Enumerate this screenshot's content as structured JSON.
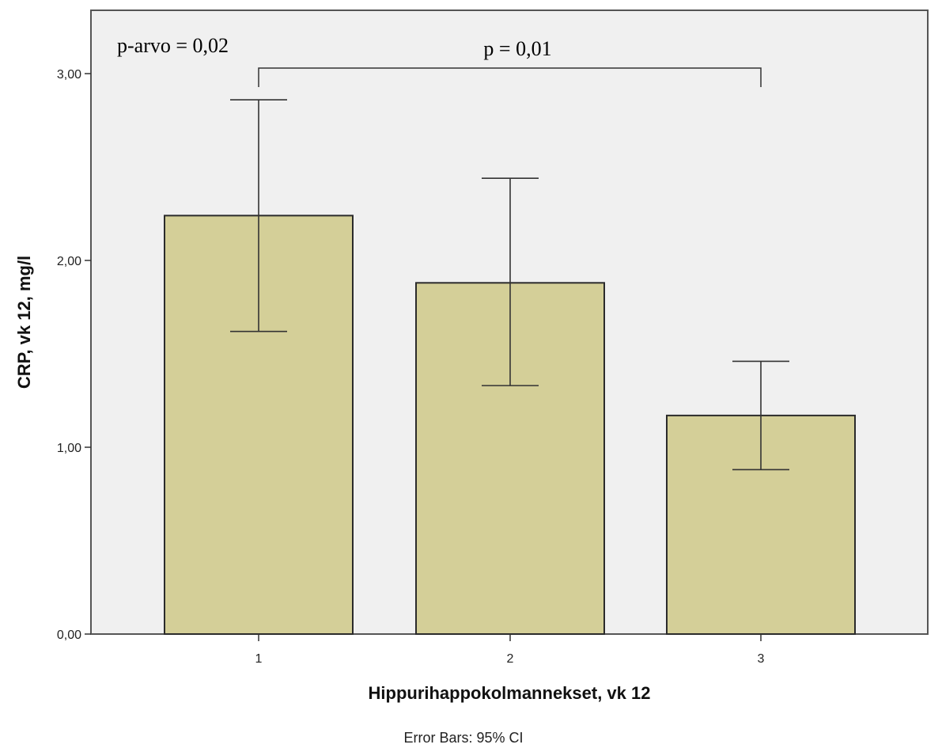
{
  "chart_data": {
    "type": "bar",
    "categories": [
      "1",
      "2",
      "3"
    ],
    "values": [
      2.24,
      1.88,
      1.17
    ],
    "error_bars": {
      "label": "Error Bars: 95% CI",
      "lower": [
        1.62,
        1.33,
        0.88
      ],
      "upper": [
        2.86,
        2.44,
        1.46
      ]
    },
    "xlabel": "Hippurihappokolmannekset, vk 12",
    "ylabel": "CRP, vk 12, mg/l",
    "ylim": [
      0,
      3.3
    ],
    "yticks": [
      "0,00",
      "1,00",
      "2,00",
      "3,00"
    ],
    "ytick_values": [
      0,
      1,
      2,
      3
    ],
    "grid": false,
    "colors": {
      "bar": "#d4cf98",
      "bar_edge": "#2b2b2b",
      "plot_bg": "#f0f0f0",
      "frame": "#555555"
    },
    "annotations": {
      "p_value_overall": "p-arvo = 0,02",
      "bracket_label": "p = 0,01",
      "bracket_from": "1",
      "bracket_to": "3"
    }
  }
}
